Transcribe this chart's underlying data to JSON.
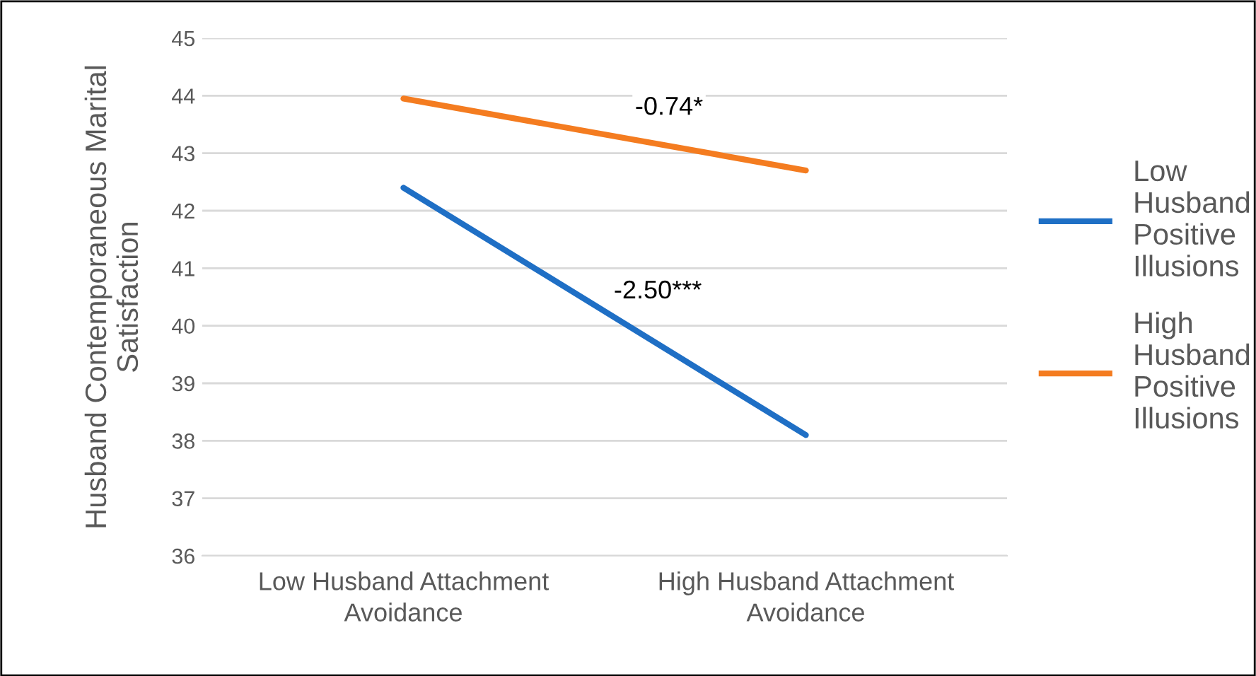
{
  "chart_data": {
    "type": "line",
    "ylabel": "Husband Contemporaneous Marital\nSatisfaction",
    "categories": [
      "Low Husband Attachment\nAvoidance",
      "High Husband Attachment\nAvoidance"
    ],
    "series": [
      {
        "name": "Low\nHusband\nPositive\nIllusions",
        "color": "#1f6fc5",
        "values": [
          42.4,
          38.1
        ]
      },
      {
        "name": "High\nHusband\nPositive\nIllusions",
        "color": "#f47c20",
        "values": [
          43.95,
          42.7
        ]
      }
    ],
    "ylim": [
      36,
      45
    ],
    "yticks": [
      36,
      37,
      38,
      39,
      40,
      41,
      42,
      43,
      44,
      45
    ],
    "grid": "y",
    "legend": "right",
    "marker": "none",
    "line_style": "solid",
    "annotations": [
      "-0.74*",
      "-2.50***"
    ]
  }
}
